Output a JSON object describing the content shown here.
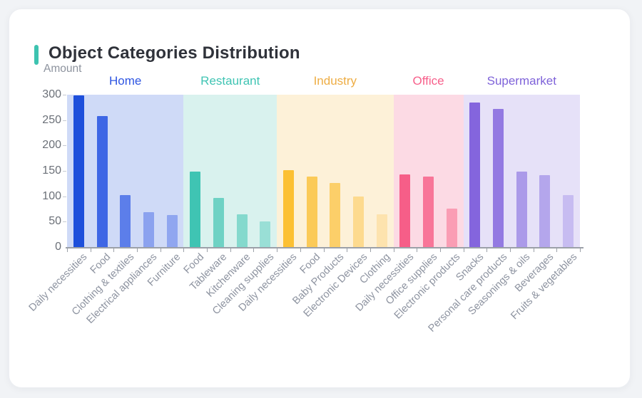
{
  "window": {
    "background": "#f1f3f6"
  },
  "card": {
    "title": "Object Categories Distribution",
    "accent_color": "#3dc3b0",
    "background": "#ffffff"
  },
  "chart_data": {
    "type": "bar",
    "title": "Object Categories Distribution",
    "ylabel": "Amount",
    "xlabel": "",
    "ylim": [
      0,
      300
    ],
    "yticks": [
      0,
      50,
      100,
      150,
      200,
      250,
      300
    ],
    "grid": false,
    "legend_position": "none",
    "group_headers_position": "top",
    "groups": [
      {
        "name": "Home",
        "label_color": "#2e55e2",
        "band_color": "#cfdaf7",
        "categories": [
          "Daily necessities",
          "Food",
          "Clothing & textiles",
          "Electrical appliances",
          "Furniture"
        ],
        "values": [
          298,
          258,
          102,
          68,
          63
        ],
        "bar_colors": [
          "#1d4fdb",
          "#3e66e5",
          "#5c7eea",
          "#8ba2ef",
          "#90a6f0"
        ]
      },
      {
        "name": "Restaurant",
        "label_color": "#3fc4b3",
        "band_color": "#d9f2ee",
        "categories": [
          "Food",
          "Tableware",
          "Kitchenware",
          "Cleaning supplies"
        ],
        "values": [
          149,
          97,
          65,
          51
        ],
        "bar_colors": [
          "#3fc4b3",
          "#6ed2c4",
          "#84d9cd",
          "#99dfd6"
        ]
      },
      {
        "name": "Industry",
        "label_color": "#eead44",
        "band_color": "#fdf1d8",
        "categories": [
          "Daily necessities",
          "Food",
          "Baby Products",
          "Electronic Devices",
          "Clothing"
        ],
        "values": [
          151,
          139,
          126,
          100,
          64
        ],
        "bar_colors": [
          "#fcc033",
          "#fbca58",
          "#fccf69",
          "#fdda8e",
          "#fde3ae"
        ]
      },
      {
        "name": "Office",
        "label_color": "#f7608b",
        "band_color": "#fcdae4",
        "categories": [
          "Daily necessities",
          "Office supplies",
          "Electronic products"
        ],
        "values": [
          143,
          139,
          76
        ],
        "bar_colors": [
          "#f65e88",
          "#f87598",
          "#fa9db4"
        ]
      },
      {
        "name": "Supermarket",
        "label_color": "#7e62d9",
        "band_color": "#e6e1f8",
        "categories": [
          "Snacks",
          "Personal care products",
          "Seasonings & oils",
          "Beverages",
          "Fruits & vegetables"
        ],
        "values": [
          285,
          272,
          149,
          141,
          102
        ],
        "bar_colors": [
          "#8465dd",
          "#9379e2",
          "#ab9ae9",
          "#b4a6ec",
          "#c7bcf1"
        ]
      }
    ],
    "style": {
      "axis_color": "#9ba0a8",
      "y_tick_label_color": "#6b7078",
      "x_label_color": "#8d93a0",
      "y_axis_title_color": "#8d939e",
      "title_color": "#2f323a"
    }
  }
}
